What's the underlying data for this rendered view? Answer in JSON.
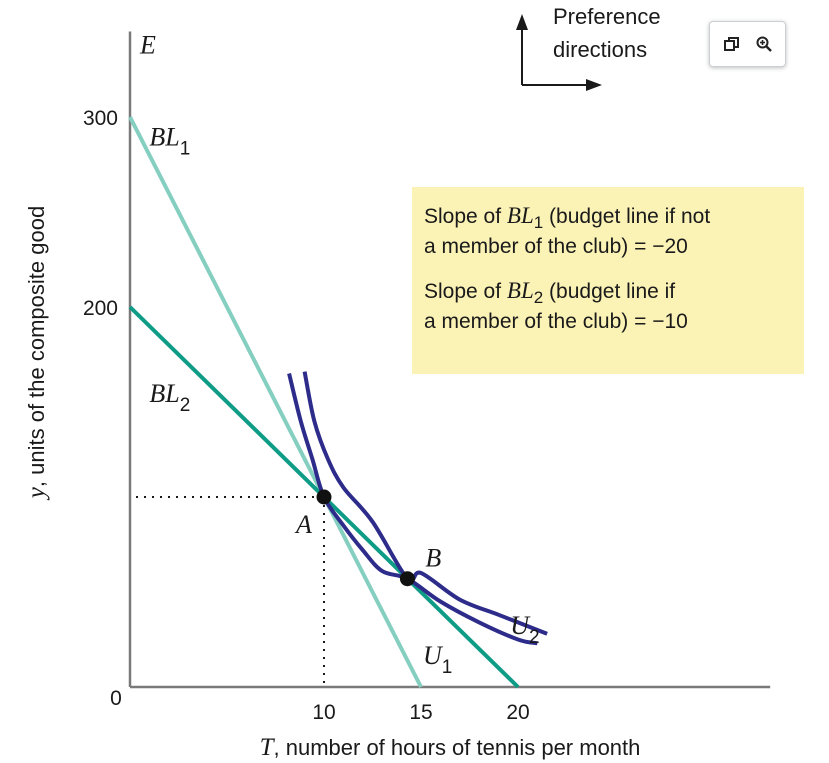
{
  "chart_data": {
    "type": "line",
    "x_axis": {
      "label_var": "T",
      "label_rest": ", number of hours of tennis per month",
      "ticks": [
        10,
        15,
        20
      ],
      "origin_label": "0",
      "range": [
        0,
        33
      ]
    },
    "y_axis": {
      "label_var": "y",
      "label_rest": ", units of the composite good",
      "ticks": [
        200,
        300
      ],
      "range": [
        0,
        345
      ],
      "top_label": "E"
    },
    "series": [
      {
        "name": "BL",
        "sub": "1",
        "kind": "budget",
        "color": "#85cfc0",
        "points": [
          [
            0,
            300
          ],
          [
            15,
            0
          ]
        ]
      },
      {
        "name": "BL",
        "sub": "2",
        "kind": "budget",
        "color": "#0e9c86",
        "points": [
          [
            0,
            200
          ],
          [
            20,
            0
          ]
        ]
      },
      {
        "name": "U",
        "sub": "1",
        "kind": "indifference",
        "color": "#2e2c8a",
        "points": [
          [
            8.2,
            165
          ],
          [
            8.8,
            140
          ],
          [
            9.4,
            120
          ],
          [
            10,
            100
          ],
          [
            11,
            85
          ],
          [
            12,
            72
          ],
          [
            13,
            61
          ],
          [
            14.3,
            57
          ],
          [
            16,
            45
          ],
          [
            18,
            34
          ],
          [
            20,
            25
          ],
          [
            21,
            23
          ]
        ]
      },
      {
        "name": "U",
        "sub": "2",
        "kind": "indifference",
        "color": "#2e2c8a",
        "points": [
          [
            9,
            166
          ],
          [
            9.5,
            140
          ],
          [
            10.2,
            120
          ],
          [
            11,
            105
          ],
          [
            12.5,
            87
          ],
          [
            14.3,
            57
          ],
          [
            15,
            60
          ],
          [
            17,
            46
          ],
          [
            19,
            38
          ],
          [
            21,
            30
          ],
          [
            21.5,
            28
          ]
        ]
      }
    ],
    "points": [
      {
        "label": "A",
        "x": 10,
        "y": 100,
        "guides": true
      },
      {
        "label": "B",
        "x": 14.3,
        "y": 57,
        "guides": false
      }
    ],
    "curve_labels": [
      {
        "name": "BL",
        "sub": "1",
        "x": 1,
        "y": 285
      },
      {
        "name": "BL",
        "sub": "2",
        "x": 1,
        "y": 150
      },
      {
        "name": "U",
        "sub": "1",
        "x": 15.1,
        "y": 12
      },
      {
        "name": "U",
        "sub": "2",
        "x": 19.6,
        "y": 28
      }
    ]
  },
  "preference": {
    "line1": "Preference",
    "line2": "directions"
  },
  "notes": [
    {
      "prefix": "Slope of ",
      "sym": "BL",
      "sub": "1",
      "line1_rest": " (budget line if not",
      "line2": "a member of the club) = −20"
    },
    {
      "prefix": "Slope of ",
      "sym": "BL",
      "sub": "2",
      "line1_rest": " (budget line if",
      "line2": "a member of the club) = −10"
    }
  ],
  "toolbar": {
    "items": [
      {
        "name": "open-in-window-icon",
        "glyph": "⧉"
      },
      {
        "name": "zoom-icon",
        "glyph": "⊕"
      }
    ]
  }
}
